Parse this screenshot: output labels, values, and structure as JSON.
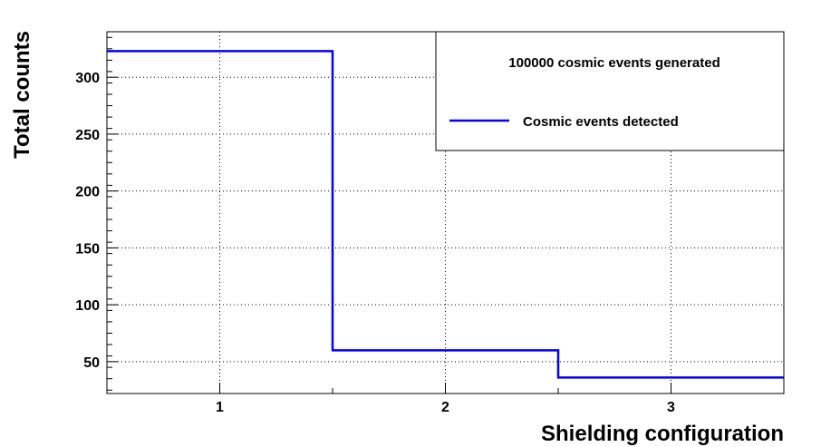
{
  "chart_data": {
    "type": "step",
    "x": [
      1,
      2,
      3
    ],
    "bin_edges": [
      0.5,
      1.5,
      2.5,
      3.5
    ],
    "series": [
      {
        "name": "Cosmic events detected",
        "values": [
          323,
          60,
          36
        ],
        "color": "#0000ff"
      }
    ],
    "xlabel": "Shielding configuration",
    "ylabel": "Total counts",
    "xticks": [
      1,
      2,
      3
    ],
    "yticks": [
      50,
      100,
      150,
      200,
      250,
      300
    ],
    "xlim": [
      0.5,
      3.5
    ],
    "ylim": [
      22,
      340
    ],
    "grid": true,
    "legend": {
      "header": "100000 cosmic events generated",
      "placement": "top-right"
    }
  }
}
